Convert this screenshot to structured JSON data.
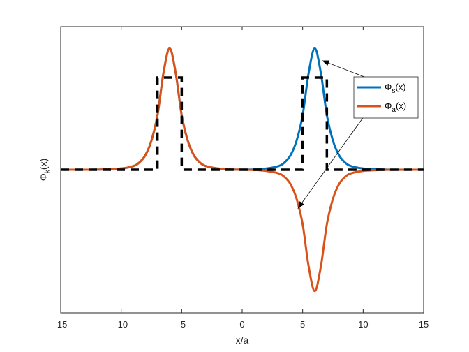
{
  "chart_data": {
    "type": "line",
    "xlabel": "x/a",
    "ylabel": "Φ_k(x)",
    "xlim": [
      -15,
      15
    ],
    "ylim": [
      -1.18,
      1.18
    ],
    "xticks": [
      "-15",
      "-10",
      "-5",
      "0",
      "5",
      "10",
      "15"
    ],
    "yticks": [],
    "grid": false,
    "legend": "right, inside plot",
    "series": [
      {
        "name": "Φ_s(x)",
        "label_main": "Φ",
        "label_sub": "s",
        "label_tail": "(x)",
        "color": "#0072BD",
        "x": [
          -15,
          -12,
          -10,
          -9,
          -8.5,
          -8,
          -7.5,
          -7,
          -6.5,
          -6,
          -5.5,
          -5,
          -4.5,
          -4,
          -3.5,
          -3,
          -2,
          -1,
          0,
          1,
          2,
          3,
          3.5,
          4,
          4.5,
          5,
          5.5,
          6,
          6.5,
          7,
          7.5,
          8,
          8.5,
          9,
          10,
          12,
          15
        ],
        "y": [
          0,
          0.001,
          0.01,
          0.03,
          0.06,
          0.12,
          0.24,
          0.45,
          0.8,
          1.0,
          0.8,
          0.45,
          0.24,
          0.12,
          0.06,
          0.03,
          0.01,
          0.002,
          0.001,
          0.002,
          0.01,
          0.03,
          0.06,
          0.12,
          0.24,
          0.45,
          0.8,
          1.0,
          0.8,
          0.45,
          0.24,
          0.12,
          0.06,
          0.03,
          0.01,
          0.001,
          0
        ]
      },
      {
        "name": "Φ_a(x)",
        "label_main": "Φ",
        "label_sub": "a",
        "label_tail": "(x)",
        "color": "#D95319",
        "x": [
          -15,
          -12,
          -10,
          -9,
          -8.5,
          -8,
          -7.5,
          -7,
          -6.5,
          -6,
          -5.5,
          -5,
          -4.5,
          -4,
          -3.5,
          -3,
          -2,
          -1,
          0,
          1,
          2,
          3,
          3.5,
          4,
          4.5,
          5,
          5.5,
          6,
          6.5,
          7,
          7.5,
          8,
          8.5,
          9,
          10,
          12,
          15
        ],
        "y": [
          0,
          0.001,
          0.01,
          0.03,
          0.06,
          0.12,
          0.24,
          0.45,
          0.8,
          1.0,
          0.8,
          0.45,
          0.24,
          0.12,
          0.06,
          0.03,
          0.01,
          0.002,
          0,
          -0.002,
          -0.01,
          -0.03,
          -0.06,
          -0.12,
          -0.24,
          -0.45,
          -0.8,
          -1.0,
          -0.8,
          -0.45,
          -0.24,
          -0.12,
          -0.06,
          -0.03,
          -0.01,
          -0.001,
          0
        ]
      },
      {
        "name": "",
        "color": "#000000",
        "dashed": true,
        "x": [
          -15,
          -7,
          -7,
          -5,
          -5,
          5,
          5,
          7,
          7,
          15
        ],
        "y": [
          0,
          0,
          0.76,
          0.76,
          0,
          0,
          0.76,
          0.76,
          0,
          0
        ]
      }
    ],
    "annotations": [
      {
        "type": "arrow",
        "from": [
          10.5,
          0.75
        ],
        "to": [
          6.6,
          0.9
        ]
      },
      {
        "type": "arrow",
        "from": [
          10.5,
          0.5
        ],
        "to": [
          4.6,
          -0.32
        ]
      }
    ]
  }
}
